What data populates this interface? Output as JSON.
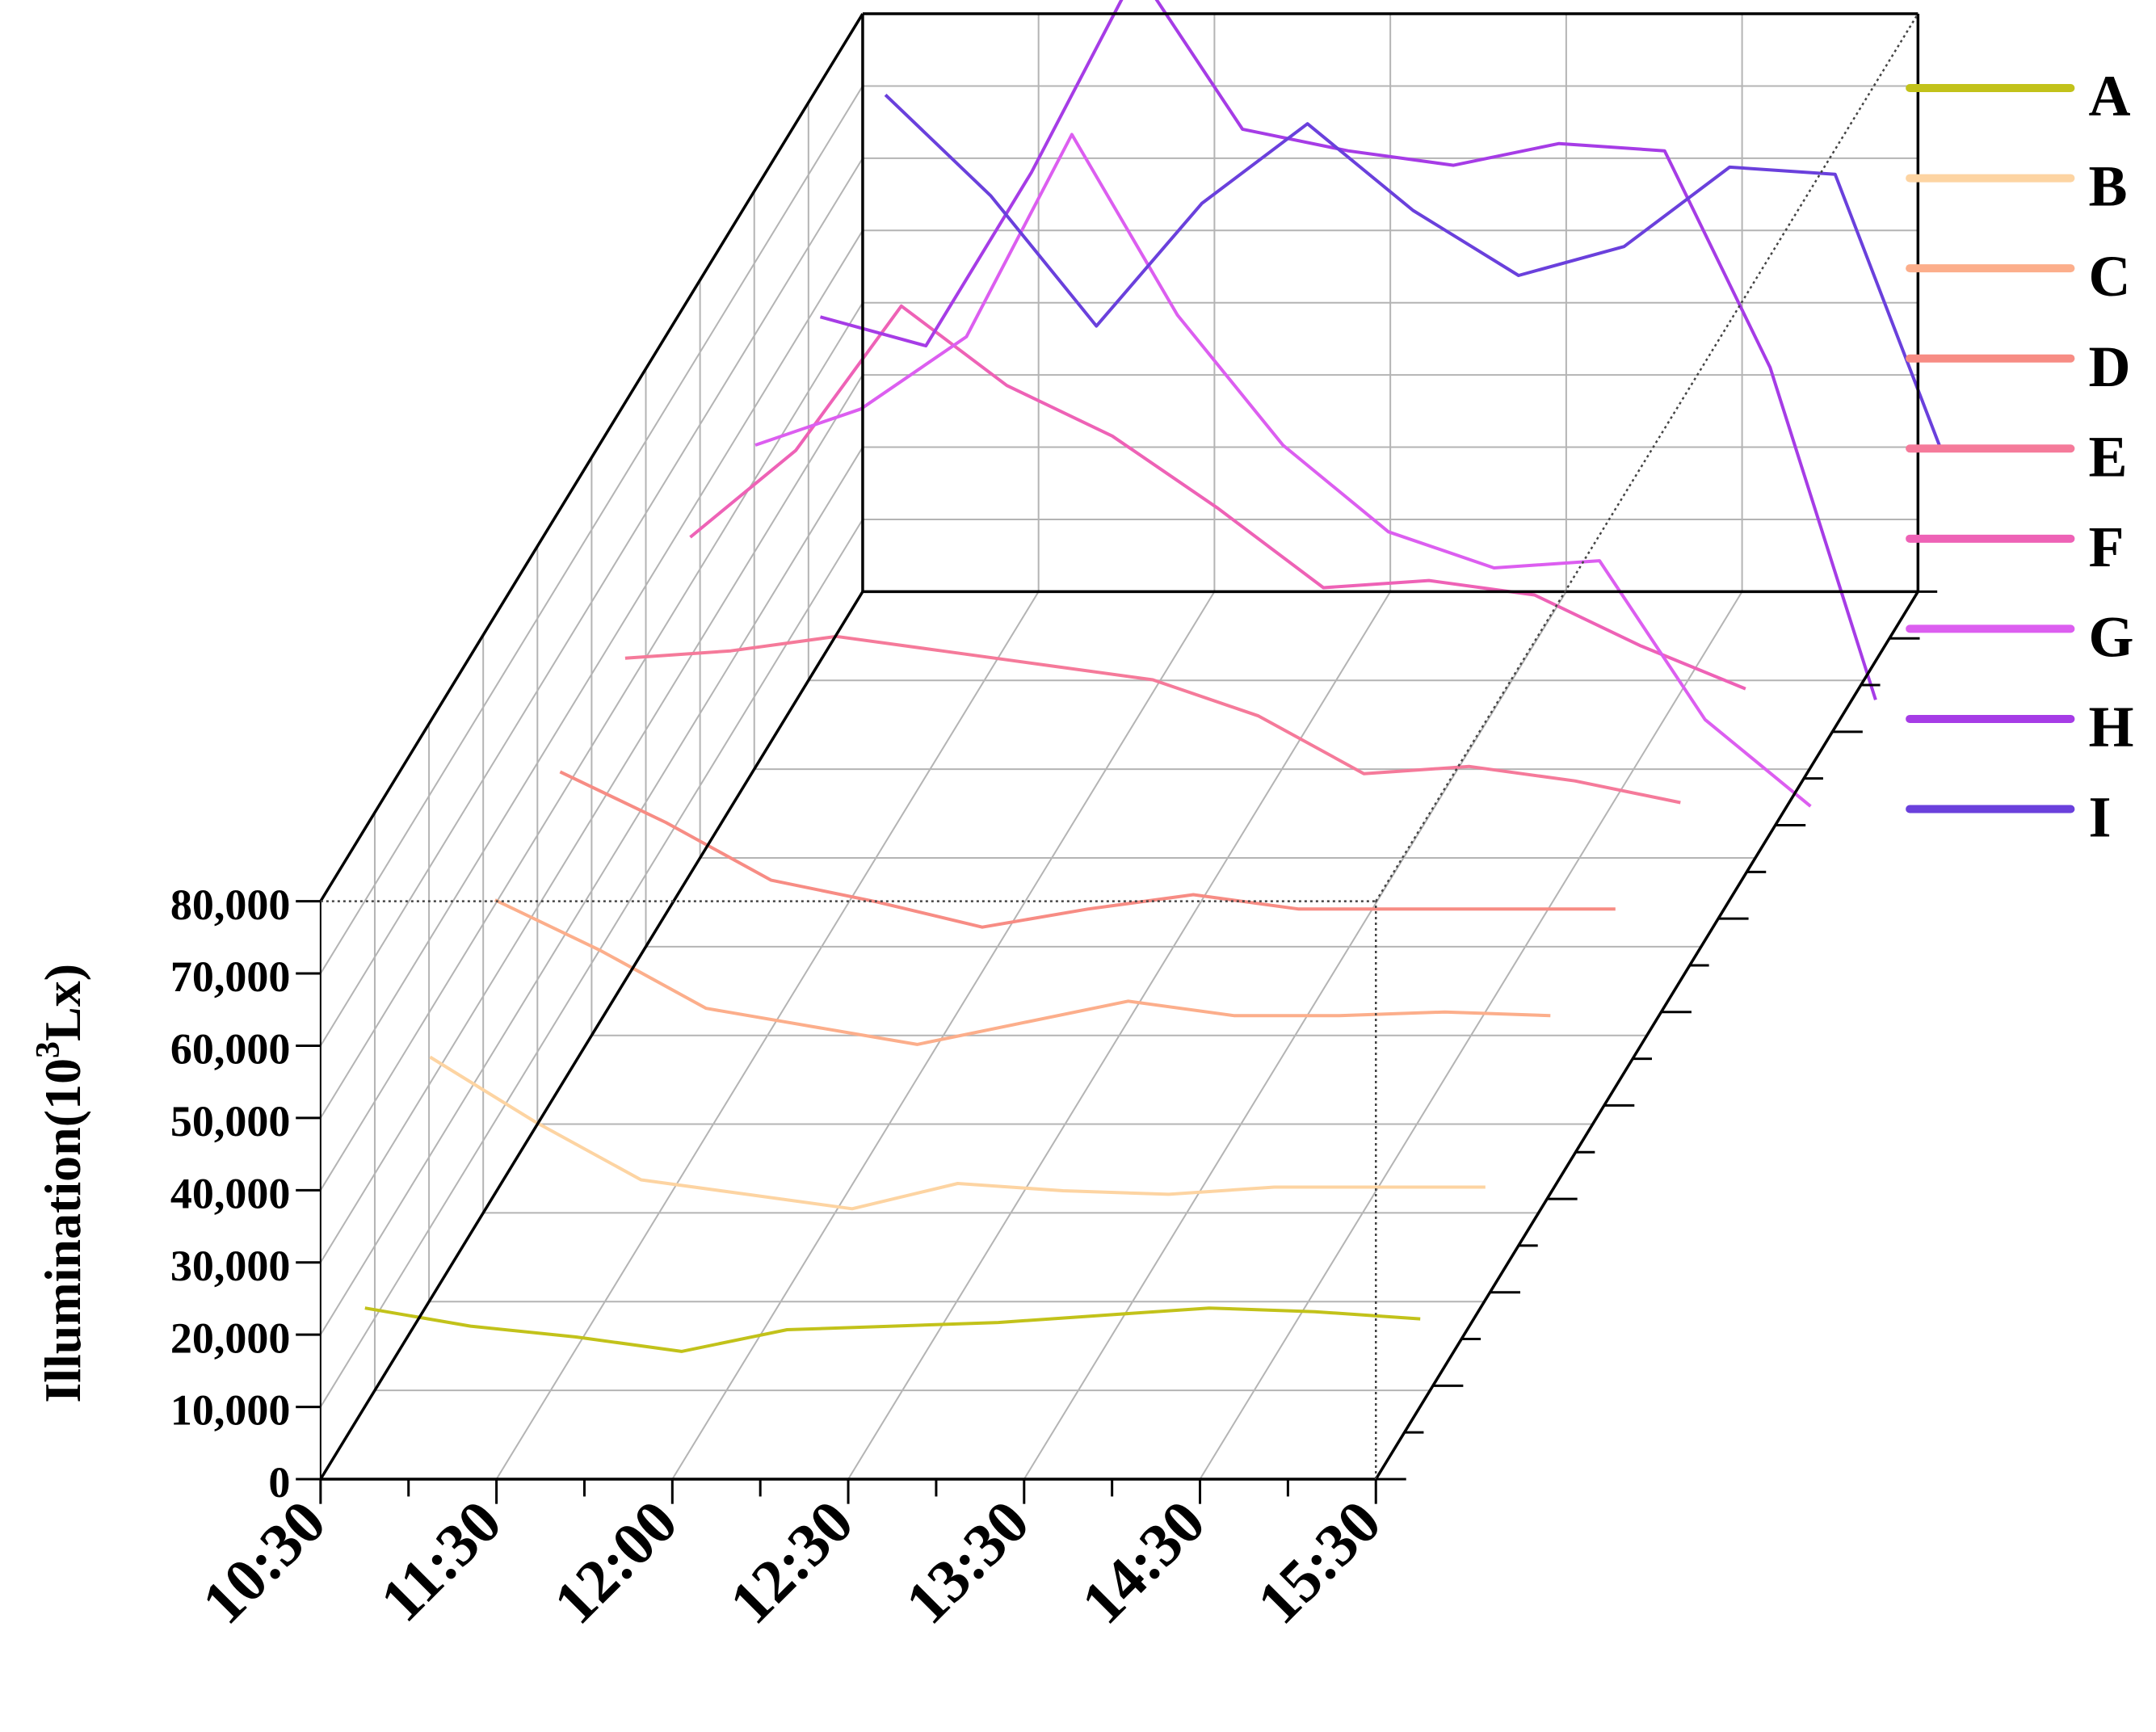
{
  "chart_data": {
    "type": "line",
    "subtype": "3d-waterfall",
    "title": "",
    "xlabel": "",
    "ylabel": "Illumination(10",
    "ylabel_sup": "3",
    "ylabel_suffix": "Lx)",
    "ylim": [
      0,
      80000
    ],
    "y_ticks": [
      "0",
      "10,000",
      "20,000",
      "30,000",
      "40,000",
      "50,000",
      "60,000",
      "70,000",
      "80,000"
    ],
    "x_tick_labels": [
      "10:30",
      "11:30",
      "12:00",
      "12:30",
      "13:30",
      "14:30",
      "15:30"
    ],
    "x": [
      "10:30",
      "11:00",
      "11:30",
      "12:00",
      "12:30",
      "13:00",
      "13:30",
      "14:00",
      "14:30",
      "15:00",
      "15:30"
    ],
    "legend_position": "right",
    "grid": true,
    "series": [
      {
        "name": "A",
        "color": "#c2c21a",
        "values": [
          20000,
          17500,
          16000,
          14000,
          17000,
          17500,
          18000,
          19000,
          20000,
          19500,
          18500
        ]
      },
      {
        "name": "B",
        "color": "#fdd4a2",
        "values": [
          40000,
          31000,
          23000,
          21000,
          19000,
          22500,
          21500,
          21000,
          22000,
          22000,
          22000
        ]
      },
      {
        "name": "C",
        "color": "#fcae8b",
        "values": [
          47000,
          40000,
          32000,
          29500,
          27000,
          30000,
          33000,
          31000,
          31000,
          31500,
          31000
        ]
      },
      {
        "name": "D",
        "color": "#f78c84",
        "values": [
          50000,
          43000,
          35000,
          32000,
          28500,
          31000,
          33000,
          31000,
          31000,
          31000,
          31000
        ]
      },
      {
        "name": "E",
        "color": "#f57a9a",
        "values": [
          51000,
          52000,
          54000,
          52000,
          50000,
          48000,
          43000,
          35000,
          36000,
          34000,
          31000
        ]
      },
      {
        "name": "F",
        "color": "#ee62b6",
        "values": [
          53000,
          65000,
          85000,
          74000,
          67000,
          57000,
          46000,
          47000,
          45000,
          38000,
          32000
        ]
      },
      {
        "name": "G",
        "color": "#dc5ef0",
        "values": [
          51000,
          56000,
          66000,
          94000,
          69000,
          51000,
          39000,
          34000,
          35000,
          13000,
          1000
        ]
      },
      {
        "name": "H",
        "color": "#a63ce6",
        "values": [
          54000,
          50000,
          74000,
          102000,
          80000,
          77000,
          75000,
          78000,
          77000,
          47000,
          1000
        ]
      },
      {
        "name": "I",
        "color": "#6a40dc",
        "values": [
          70000,
          56000,
          38000,
          55000,
          66000,
          54000,
          45000,
          49000,
          60000,
          59000,
          21000
        ]
      }
    ]
  }
}
